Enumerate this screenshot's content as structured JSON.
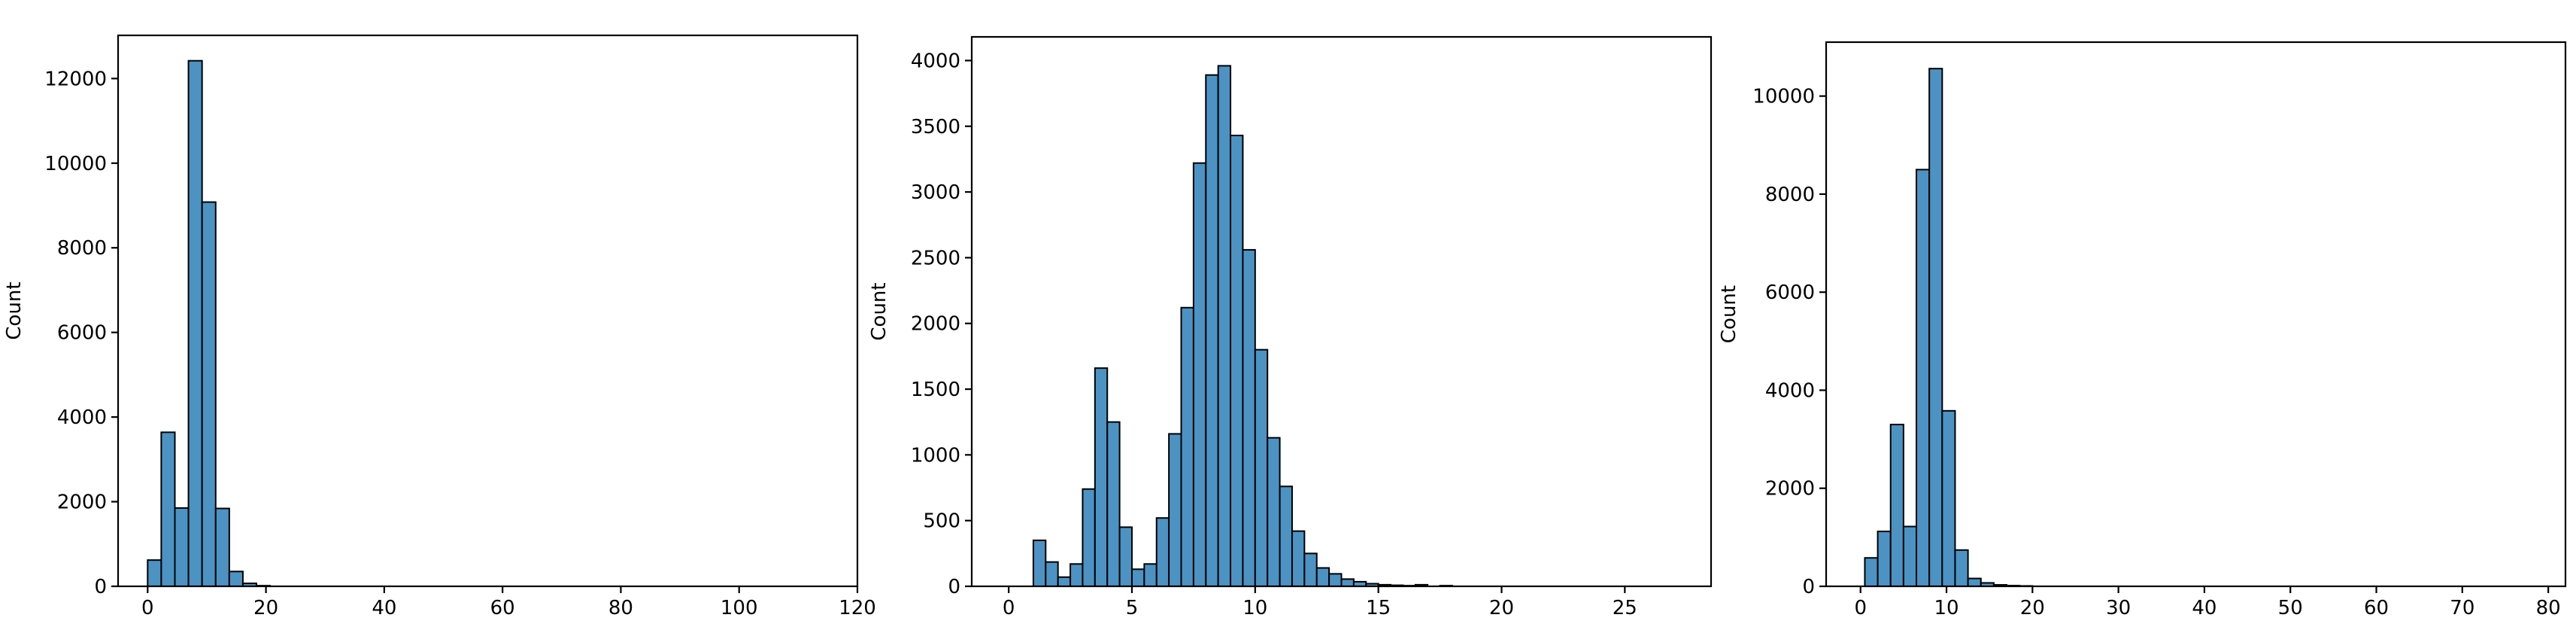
{
  "chart_data": [
    {
      "type": "bar",
      "title": "",
      "xlabel": "",
      "ylabel": "Count",
      "xlim": [
        -5,
        120
      ],
      "ylim": [
        0,
        13020
      ],
      "xticks": [
        0,
        20,
        40,
        60,
        80,
        100,
        120
      ],
      "yticks": [
        0,
        2000,
        4000,
        6000,
        8000,
        10000,
        12000
      ],
      "grid": false,
      "bins": [
        [
          0,
          2.3
        ],
        [
          2.3,
          4.6
        ],
        [
          4.6,
          6.9
        ],
        [
          6.9,
          9.2
        ],
        [
          9.2,
          11.5
        ],
        [
          11.5,
          13.8
        ],
        [
          13.8,
          16.1
        ],
        [
          16.1,
          18.4
        ],
        [
          18.4,
          20.7
        ]
      ],
      "values": [
        620,
        3640,
        1850,
        12420,
        9080,
        1840,
        350,
        70,
        15
      ],
      "color": "#4C93C3"
    },
    {
      "type": "bar",
      "title": "",
      "xlabel": "",
      "ylabel": "Count",
      "xlim": [
        -1.5,
        28.5
      ],
      "ylim": [
        0,
        4180
      ],
      "xticks": [
        0,
        5,
        10,
        15,
        20,
        25
      ],
      "yticks": [
        0,
        500,
        1000,
        1500,
        2000,
        2500,
        3000,
        3500,
        4000
      ],
      "grid": false,
      "bins": [
        [
          1.0,
          1.5
        ],
        [
          1.5,
          2.0
        ],
        [
          2.0,
          2.5
        ],
        [
          2.5,
          3.0
        ],
        [
          3.0,
          3.5
        ],
        [
          3.5,
          4.0
        ],
        [
          4.0,
          4.5
        ],
        [
          4.5,
          5.0
        ],
        [
          5.0,
          5.5
        ],
        [
          5.5,
          6.0
        ],
        [
          6.0,
          6.5
        ],
        [
          6.5,
          7.0
        ],
        [
          7.0,
          7.5
        ],
        [
          7.5,
          8.0
        ],
        [
          8.0,
          8.5
        ],
        [
          8.5,
          9.0
        ],
        [
          9.0,
          9.5
        ],
        [
          9.5,
          10.0
        ],
        [
          10.0,
          10.5
        ],
        [
          10.5,
          11.0
        ],
        [
          11.0,
          11.5
        ],
        [
          11.5,
          12.0
        ],
        [
          12.0,
          12.5
        ],
        [
          12.5,
          13.0
        ],
        [
          13.0,
          13.5
        ],
        [
          13.5,
          14.0
        ],
        [
          14.0,
          14.5
        ],
        [
          14.5,
          15.0
        ],
        [
          15.0,
          15.5
        ],
        [
          15.5,
          16.0
        ],
        [
          16.0,
          16.5
        ],
        [
          16.5,
          17.0
        ],
        [
          17.0,
          17.5
        ],
        [
          17.5,
          18.0
        ]
      ],
      "values": [
        350,
        185,
        70,
        170,
        740,
        1660,
        1250,
        450,
        130,
        170,
        520,
        1160,
        2120,
        3220,
        3890,
        3960,
        3430,
        2560,
        1800,
        1130,
        760,
        420,
        250,
        140,
        95,
        55,
        35,
        20,
        12,
        8,
        5,
        12,
        0,
        5
      ],
      "color": "#4C93C3"
    },
    {
      "type": "bar",
      "title": "",
      "xlabel": "",
      "ylabel": "Count",
      "xlim": [
        -4,
        82
      ],
      "ylim": [
        0,
        11100
      ],
      "xticks": [
        0,
        10,
        20,
        30,
        40,
        50,
        60,
        70,
        80
      ],
      "yticks": [
        0,
        2000,
        4000,
        6000,
        8000,
        10000
      ],
      "grid": false,
      "bins": [
        [
          0.5,
          2.0
        ],
        [
          2.0,
          3.5
        ],
        [
          3.5,
          5.0
        ],
        [
          5.0,
          6.5
        ],
        [
          6.5,
          8.0
        ],
        [
          8.0,
          9.5
        ],
        [
          9.5,
          11.0
        ],
        [
          11.0,
          12.5
        ],
        [
          12.5,
          14.0
        ],
        [
          14.0,
          15.5
        ],
        [
          15.5,
          17.0
        ],
        [
          17.0,
          18.5
        ],
        [
          18.5,
          20.0
        ]
      ],
      "values": [
        580,
        1120,
        3300,
        1220,
        8500,
        10560,
        3580,
        740,
        160,
        70,
        30,
        15,
        8
      ],
      "color": "#4C93C3"
    }
  ]
}
